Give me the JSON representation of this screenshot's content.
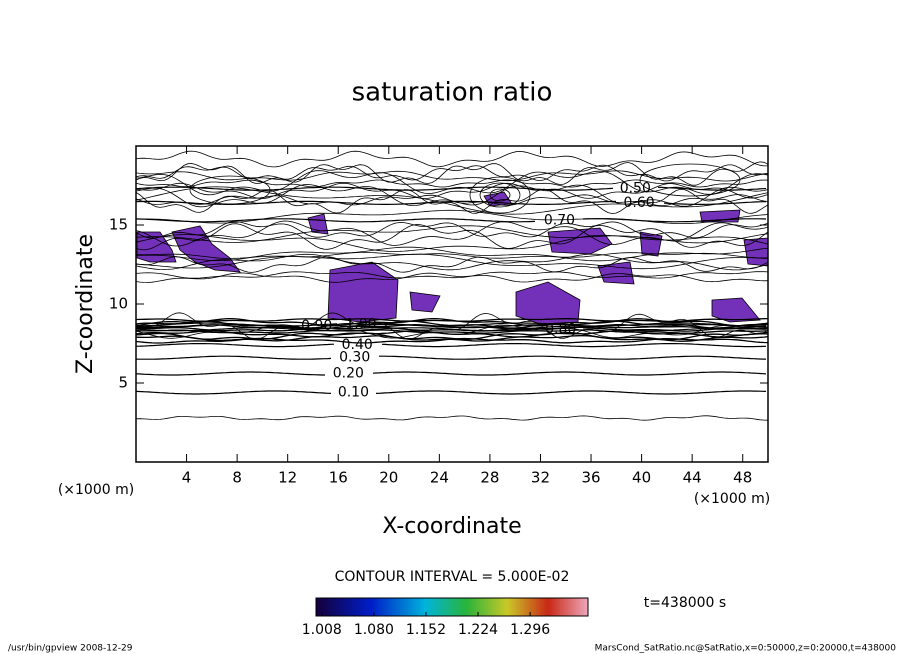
{
  "chart_data": {
    "type": "contour",
    "title": "saturation ratio",
    "xlabel": "X-coordinate",
    "ylabel": "Z-coordinate",
    "xunit": "(×1000 m)",
    "yunit": "(×1000 m)",
    "xlim": [
      0,
      50
    ],
    "xticks": [
      4,
      8,
      12,
      16,
      20,
      24,
      28,
      32,
      36,
      40,
      44,
      48
    ],
    "ylim": [
      0,
      20
    ],
    "yticks": [
      5,
      10,
      15
    ],
    "contour_interval_text": "CONTOUR INTERVAL = 5.000E-02",
    "time_label": "t=438000 s",
    "footer_left": "/usr/bin/gpview   2008-12-29",
    "footer_right": "MarsCond_SatRatio.nc@SatRatio,x=0:50000,z=0:20000,t=438000",
    "contours": [
      {
        "value": 0.1,
        "label": "0.10",
        "x": 17.2,
        "z": 4.4
      },
      {
        "value": 0.2,
        "label": "0.20",
        "x": 16.8,
        "z": 5.6
      },
      {
        "value": 0.3,
        "label": "0.30",
        "x": 17.3,
        "z": 6.6
      },
      {
        "value": 0.4,
        "label": "0.40",
        "x": 17.5,
        "z": 7.4
      },
      {
        "value": 0.5,
        "label": "0.50",
        "x": 39.5,
        "z": 17.3
      },
      {
        "value": 0.6,
        "label": "0.60",
        "x": 39.8,
        "z": 16.4
      },
      {
        "value": 0.7,
        "label": "0.70",
        "x": 33.5,
        "z": 15.3
      },
      {
        "value": 0.8,
        "label": "0.80",
        "x": 33.6,
        "z": 8.4
      },
      {
        "value": 0.9,
        "label": "0.90",
        "x": 14.3,
        "z": 8.6
      },
      {
        "value": 1.0,
        "label": "1.00",
        "x": 17.8,
        "z": 8.7
      }
    ],
    "colorbar_lim": [
      1.0,
      1.376
    ],
    "colorbar_ticks": [
      {
        "value": 1.008,
        "label": "1.008"
      },
      {
        "value": 1.08,
        "label": "1.080"
      },
      {
        "value": 1.152,
        "label": "1.152"
      },
      {
        "value": 1.224,
        "label": "1.224"
      },
      {
        "value": 1.296,
        "label": "1.296"
      }
    ]
  }
}
